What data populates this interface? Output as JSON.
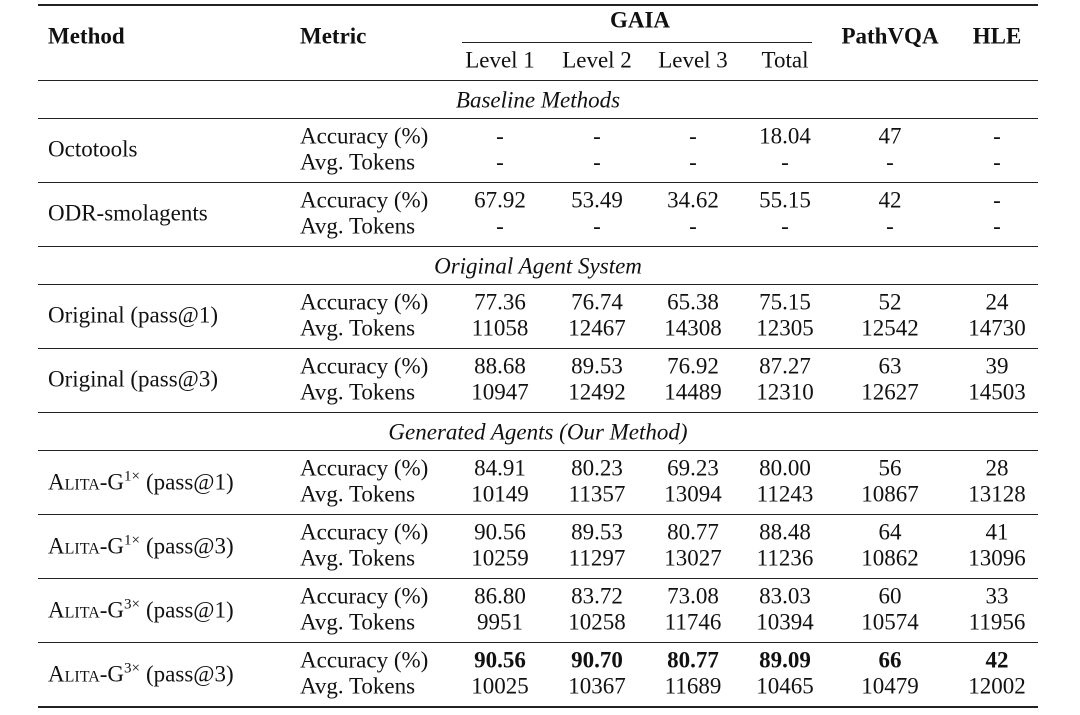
{
  "header": {
    "method": "Method",
    "metric": "Metric",
    "gaia": "GAIA",
    "levels": [
      "Level 1",
      "Level 2",
      "Level 3",
      "Total"
    ],
    "pathvqa": "PathVQA",
    "hle": "HLE"
  },
  "sections": [
    {
      "title": "Baseline Methods",
      "groups": [
        {
          "method": "Octotools",
          "rows": [
            {
              "metric": "Accuracy (%)",
              "values": [
                "-",
                "-",
                "-",
                "18.04",
                "47",
                "-"
              ]
            },
            {
              "metric": "Avg. Tokens",
              "values": [
                "-",
                "-",
                "-",
                "-",
                "-",
                "-"
              ]
            }
          ]
        },
        {
          "method": "ODR-smolagents",
          "rows": [
            {
              "metric": "Accuracy (%)",
              "values": [
                "67.92",
                "53.49",
                "34.62",
                "55.15",
                "42",
                "-"
              ]
            },
            {
              "metric": "Avg. Tokens",
              "values": [
                "-",
                "-",
                "-",
                "-",
                "-",
                "-"
              ]
            }
          ]
        }
      ]
    },
    {
      "title": "Original Agent System",
      "groups": [
        {
          "method": "Original (pass@1)",
          "rows": [
            {
              "metric": "Accuracy (%)",
              "values": [
                "77.36",
                "76.74",
                "65.38",
                "75.15",
                "52",
                "24"
              ]
            },
            {
              "metric": "Avg. Tokens",
              "values": [
                "11058",
                "12467",
                "14308",
                "12305",
                "12542",
                "14730"
              ]
            }
          ]
        },
        {
          "method": "Original (pass@3)",
          "rows": [
            {
              "metric": "Accuracy (%)",
              "values": [
                "88.68",
                "89.53",
                "76.92",
                "87.27",
                "63",
                "39"
              ]
            },
            {
              "metric": "Avg. Tokens",
              "values": [
                "10947",
                "12492",
                "14489",
                "12310",
                "12627",
                "14503"
              ]
            }
          ]
        }
      ]
    },
    {
      "title": "Generated Agents (Our Method)",
      "groups": [
        {
          "method": {
            "name": "Alita-G",
            "sup": "1×",
            "suffix": "(pass@1)"
          },
          "rows": [
            {
              "metric": "Accuracy (%)",
              "values": [
                "84.91",
                "80.23",
                "69.23",
                "80.00",
                "56",
                "28"
              ]
            },
            {
              "metric": "Avg. Tokens",
              "values": [
                "10149",
                "11357",
                "13094",
                "11243",
                "10867",
                "13128"
              ]
            }
          ]
        },
        {
          "method": {
            "name": "Alita-G",
            "sup": "1×",
            "suffix": "(pass@3)"
          },
          "rows": [
            {
              "metric": "Accuracy (%)",
              "values": [
                "90.56",
                "89.53",
                "80.77",
                "88.48",
                "64",
                "41"
              ]
            },
            {
              "metric": "Avg. Tokens",
              "values": [
                "10259",
                "11297",
                "13027",
                "11236",
                "10862",
                "13096"
              ]
            }
          ]
        },
        {
          "method": {
            "name": "Alita-G",
            "sup": "3×",
            "suffix": "(pass@1)"
          },
          "rows": [
            {
              "metric": "Accuracy (%)",
              "values": [
                "86.80",
                "83.72",
                "73.08",
                "83.03",
                "60",
                "33"
              ]
            },
            {
              "metric": "Avg. Tokens",
              "values": [
                "9951",
                "10258",
                "11746",
                "10394",
                "10574",
                "11956"
              ]
            }
          ]
        },
        {
          "method": {
            "name": "Alita-G",
            "sup": "3×",
            "suffix": "(pass@3)"
          },
          "rows": [
            {
              "metric": "Accuracy (%)",
              "values": [
                "90.56",
                "90.70",
                "80.77",
                "89.09",
                "66",
                "42"
              ],
              "bold": true
            },
            {
              "metric": "Avg. Tokens",
              "values": [
                "10025",
                "10367",
                "11689",
                "10465",
                "10479",
                "12002"
              ]
            }
          ]
        }
      ]
    }
  ]
}
